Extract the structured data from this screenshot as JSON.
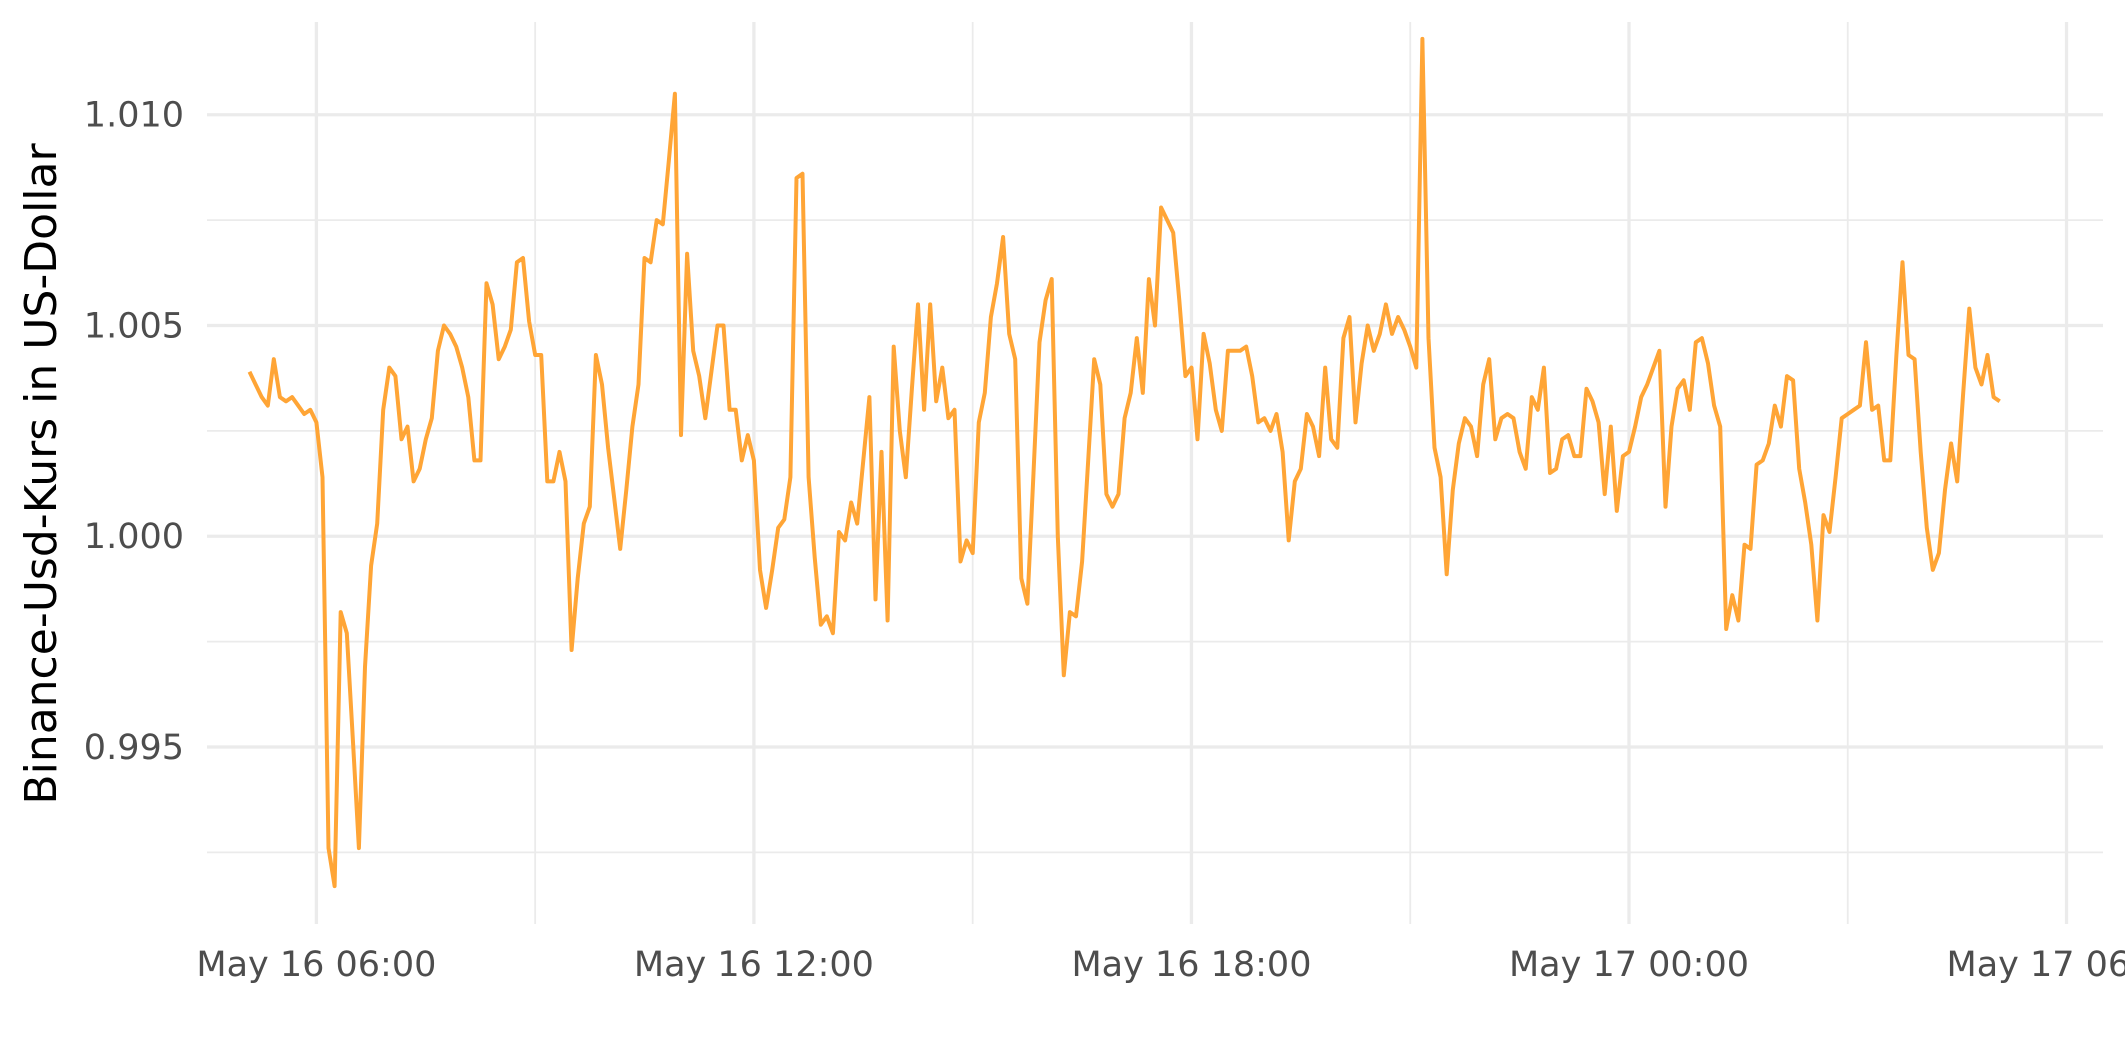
{
  "chart_data": {
    "type": "line",
    "title": "",
    "xlabel": "",
    "ylabel": "Binance-Usd-Kurs in US-Dollar",
    "x_axis": "datetime",
    "xlim": [
      "2024-05-16T04:30:00",
      "2024-05-17T06:30:00"
    ],
    "ylim": [
      0.9908,
      1.0122
    ],
    "y_ticks": [
      0.995,
      1.0,
      1.005,
      1.01
    ],
    "y_tick_labels": [
      "0.995",
      "1.000",
      "1.005",
      "1.010"
    ],
    "x_ticks": [
      "2024-05-16T06:00:00",
      "2024-05-16T12:00:00",
      "2024-05-16T18:00:00",
      "2024-05-17T00:00:00",
      "2024-05-17T06:00:00"
    ],
    "x_tick_labels": [
      "May 16 06:00",
      "May 16 12:00",
      "May 16 18:00",
      "May 17 00:00",
      "May 17 06:00"
    ],
    "grid": true,
    "legend": "none",
    "series": [
      {
        "color": "#ffa536",
        "interval_minutes": 5,
        "start": "2024-05-16T05:05:00",
        "values": [
          1.0039,
          1.0036,
          1.0033,
          1.0031,
          1.0042,
          1.0033,
          1.0032,
          1.0033,
          1.0031,
          1.0029,
          1.003,
          1.0027,
          1.0014,
          0.9926,
          0.9917,
          0.9982,
          0.9977,
          0.9952,
          0.9926,
          0.9969,
          0.9993,
          1.0003,
          1.003,
          1.004,
          1.0038,
          1.0023,
          1.0026,
          1.0013,
          1.0016,
          1.0023,
          1.0028,
          1.0044,
          1.005,
          1.0048,
          1.0045,
          1.004,
          1.0033,
          1.0018,
          1.0018,
          1.006,
          1.0055,
          1.0042,
          1.0045,
          1.0049,
          1.0065,
          1.0066,
          1.0051,
          1.0043,
          1.0043,
          1.0013,
          1.0013,
          1.002,
          1.0013,
          0.9973,
          0.999,
          1.0003,
          1.0007,
          1.0043,
          1.0036,
          1.0021,
          1.0009,
          0.9997,
          1.0011,
          1.0026,
          1.0036,
          1.0066,
          1.0065,
          1.0075,
          1.0074,
          1.0089,
          1.0105,
          1.0024,
          1.0067,
          1.0044,
          1.0038,
          1.0028,
          1.0039,
          1.005,
          1.005,
          1.003,
          1.003,
          1.0018,
          1.0024,
          1.0018,
          0.9992,
          0.9983,
          0.9992,
          1.0002,
          1.0004,
          1.0014,
          1.0085,
          1.0086,
          1.0014,
          0.9995,
          0.9979,
          0.9981,
          0.9977,
          1.0001,
          0.9999,
          1.0008,
          1.0003,
          1.0018,
          1.0033,
          0.9985,
          1.002,
          0.998,
          1.0045,
          1.0025,
          1.0014,
          1.0035,
          1.0055,
          1.003,
          1.0055,
          1.0032,
          1.004,
          1.0028,
          1.003,
          0.9994,
          0.9999,
          0.9996,
          1.0027,
          1.0034,
          1.0052,
          1.006,
          1.0071,
          1.0048,
          1.0042,
          0.999,
          0.9984,
          1.0015,
          1.0046,
          1.0056,
          1.0061,
          1.0,
          0.9967,
          0.9982,
          0.9981,
          0.9994,
          1.0018,
          1.0042,
          1.0036,
          1.001,
          1.0007,
          1.001,
          1.0028,
          1.0034,
          1.0047,
          1.0034,
          1.0061,
          1.005,
          1.0078,
          1.0075,
          1.0072,
          1.0056,
          1.0038,
          1.004,
          1.0023,
          1.0048,
          1.0041,
          1.003,
          1.0025,
          1.0044,
          1.0044,
          1.0044,
          1.0045,
          1.0038,
          1.0027,
          1.0028,
          1.0025,
          1.0029,
          1.002,
          0.9999,
          1.0013,
          1.0016,
          1.0029,
          1.0026,
          1.0019,
          1.004,
          1.0023,
          1.0021,
          1.0047,
          1.0052,
          1.0027,
          1.0041,
          1.005,
          1.0044,
          1.0048,
          1.0055,
          1.0048,
          1.0052,
          1.0049,
          1.0045,
          1.004,
          1.0118,
          1.0047,
          1.0021,
          1.0014,
          0.9991,
          1.0011,
          1.0022,
          1.0028,
          1.0026,
          1.0019,
          1.0036,
          1.0042,
          1.0023,
          1.0028,
          1.0029,
          1.0028,
          1.002,
          1.0016,
          1.0033,
          1.003,
          1.004,
          1.0015,
          1.0016,
          1.0023,
          1.0024,
          1.0019,
          1.0019,
          1.0035,
          1.0032,
          1.0027,
          1.001,
          1.0026,
          1.0006,
          1.0019,
          1.002,
          1.0026,
          1.0033,
          1.0036,
          1.004,
          1.0044,
          1.0007,
          1.0026,
          1.0035,
          1.0037,
          1.003,
          1.0046,
          1.0047,
          1.0041,
          1.0031,
          1.0026,
          0.9978,
          0.9986,
          0.998,
          0.9998,
          0.9997,
          1.0017,
          1.0018,
          1.0022,
          1.0031,
          1.0026,
          1.0038,
          1.0037,
          1.0016,
          1.0008,
          0.9998,
          0.998,
          1.0005,
          1.0001,
          1.0014,
          1.0028,
          1.0029,
          1.003,
          1.0031,
          1.0046,
          1.003,
          1.0031,
          1.0018,
          1.0018,
          1.0043,
          1.0065,
          1.0043,
          1.0042,
          1.002,
          1.0002,
          0.9992,
          0.9996,
          1.0011,
          1.0022,
          1.0013,
          1.0034,
          1.0054,
          1.004,
          1.0036,
          1.0043,
          1.0033,
          1.0032
        ]
      }
    ]
  }
}
